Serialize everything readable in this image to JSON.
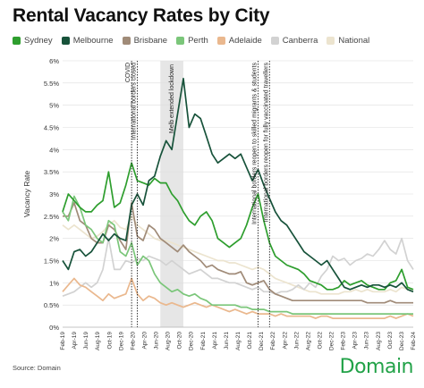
{
  "title": "Rental Vacancy Rates by City",
  "source": "Source: Domain",
  "brand": "Domain",
  "chart_data": {
    "type": "line",
    "xlabel": "",
    "ylabel": "Vacancy Rate",
    "ylim": [
      0,
      6
    ],
    "y_ticks": [
      "0%",
      "0.5%",
      "1%",
      "1.5%",
      "2%",
      "2.5%",
      "3%",
      "3.5%",
      "4%",
      "4.5%",
      "5%",
      "5.5%",
      "6%"
    ],
    "y_tick_values": [
      0,
      0.5,
      1,
      1.5,
      2,
      2.5,
      3,
      3.5,
      4,
      4.5,
      5,
      5.5,
      6
    ],
    "x_ticks": [
      "Feb-19",
      "Apr-19",
      "Jun-19",
      "Aug-19",
      "Oct-19",
      "Dec-19",
      "Feb-20",
      "Apr-20",
      "Jun-20",
      "Aug-20",
      "Oct-20",
      "Dec-20",
      "Feb-21",
      "Apr-21",
      "Jun-21",
      "Aug-21",
      "Oct-21",
      "Dec-21",
      "Feb-22",
      "Apr-22",
      "Jun-22",
      "Aug-22",
      "Oct-22",
      "Dec-22",
      "Feb-23",
      "Apr-23",
      "Jun-23",
      "Aug-23",
      "Oct-23",
      "Dec-23",
      "Feb-24"
    ],
    "grid": true,
    "legend_position": "top",
    "series": [
      {
        "name": "Sydney",
        "color": "#2e9e2e",
        "values": [
          2.6,
          3.0,
          2.85,
          2.7,
          2.6,
          2.6,
          2.75,
          2.85,
          3.5,
          2.7,
          2.8,
          3.2,
          3.7,
          3.3,
          3.25,
          3.2,
          3.35,
          3.25,
          3.25,
          3.0,
          2.85,
          2.6,
          2.4,
          2.3,
          2.5,
          2.6,
          2.4,
          2.0,
          1.9,
          1.8,
          1.9,
          2.0,
          2.3,
          2.7,
          3.0,
          2.4,
          1.9,
          1.6,
          1.5,
          1.4,
          1.35,
          1.3,
          1.2,
          1.05,
          1.0,
          0.95,
          0.85,
          0.85,
          0.9,
          1.05,
          0.95,
          1.0,
          1.05,
          0.95,
          0.9,
          0.85,
          0.85,
          1.0,
          1.05,
          1.3,
          0.9,
          0.85
        ]
      },
      {
        "name": "Melbourne",
        "color": "#17523a",
        "values": [
          1.5,
          1.3,
          1.7,
          1.75,
          1.6,
          1.7,
          1.9,
          2.1,
          1.95,
          2.1,
          2.0,
          1.95,
          2.75,
          3.0,
          2.75,
          3.3,
          3.4,
          3.85,
          4.2,
          4.0,
          4.8,
          5.6,
          4.5,
          4.8,
          4.7,
          4.3,
          3.9,
          3.7,
          3.8,
          3.9,
          3.8,
          3.9,
          3.6,
          3.3,
          3.55,
          3.2,
          2.9,
          2.6,
          2.4,
          2.3,
          2.1,
          1.9,
          1.7,
          1.6,
          1.5,
          1.4,
          1.5,
          1.3,
          1.1,
          0.9,
          0.85,
          0.9,
          0.95,
          0.9,
          0.95,
          0.95,
          0.9,
          0.95,
          0.9,
          1.0,
          0.85,
          0.8
        ]
      },
      {
        "name": "Brisbane",
        "color": "#a08b78",
        "values": [
          2.5,
          2.5,
          2.8,
          2.4,
          2.3,
          2.0,
          1.9,
          1.9,
          2.3,
          2.2,
          1.95,
          1.75,
          2.8,
          2.05,
          1.95,
          2.3,
          2.2,
          2.0,
          1.9,
          1.8,
          1.7,
          1.85,
          1.7,
          1.6,
          1.5,
          1.35,
          1.4,
          1.3,
          1.25,
          1.2,
          1.2,
          1.25,
          1.0,
          0.95,
          1.0,
          1.05,
          0.85,
          0.75,
          0.7,
          0.65,
          0.6,
          0.6,
          0.6,
          0.6,
          0.6,
          0.6,
          0.6,
          0.6,
          0.6,
          0.6,
          0.6,
          0.6,
          0.6,
          0.55,
          0.55,
          0.55,
          0.55,
          0.6,
          0.55,
          0.55,
          0.55,
          0.55
        ]
      },
      {
        "name": "Perth",
        "color": "#7bc67a",
        "values": [
          2.6,
          2.4,
          2.95,
          2.7,
          2.3,
          2.2,
          2.0,
          1.9,
          2.4,
          2.3,
          1.7,
          1.6,
          1.9,
          1.4,
          1.6,
          1.5,
          1.2,
          1.0,
          0.9,
          0.8,
          0.85,
          0.75,
          0.7,
          0.75,
          0.65,
          0.6,
          0.5,
          0.5,
          0.5,
          0.5,
          0.5,
          0.45,
          0.45,
          0.4,
          0.4,
          0.4,
          0.35,
          0.35,
          0.35,
          0.35,
          0.3,
          0.3,
          0.3,
          0.3,
          0.3,
          0.3,
          0.3,
          0.3,
          0.3,
          0.3,
          0.3,
          0.3,
          0.3,
          0.3,
          0.3,
          0.3,
          0.3,
          0.3,
          0.3,
          0.3,
          0.3,
          0.3
        ]
      },
      {
        "name": "Adelaide",
        "color": "#eab88e",
        "values": [
          0.8,
          0.95,
          1.1,
          0.95,
          0.9,
          0.8,
          0.7,
          0.6,
          0.75,
          0.65,
          0.7,
          0.75,
          1.1,
          0.75,
          0.6,
          0.7,
          0.65,
          0.55,
          0.5,
          0.55,
          0.5,
          0.45,
          0.5,
          0.55,
          0.5,
          0.45,
          0.5,
          0.45,
          0.4,
          0.35,
          0.4,
          0.35,
          0.3,
          0.35,
          0.3,
          0.3,
          0.3,
          0.25,
          0.3,
          0.25,
          0.25,
          0.25,
          0.25,
          0.25,
          0.2,
          0.25,
          0.25,
          0.2,
          0.2,
          0.2,
          0.2,
          0.2,
          0.2,
          0.2,
          0.2,
          0.2,
          0.2,
          0.25,
          0.2,
          0.25,
          0.3,
          0.25
        ]
      },
      {
        "name": "Canberra",
        "color": "#d2d2d2",
        "values": [
          0.7,
          0.75,
          0.8,
          0.9,
          1.0,
          0.9,
          1.0,
          1.3,
          2.0,
          1.3,
          1.3,
          1.5,
          1.45,
          1.55,
          1.5,
          1.6,
          1.55,
          1.5,
          1.4,
          1.5,
          1.4,
          1.3,
          1.2,
          1.25,
          1.3,
          1.2,
          1.1,
          1.1,
          1.05,
          1.0,
          1.0,
          0.95,
          0.9,
          0.85,
          0.9,
          0.8,
          0.8,
          0.75,
          0.8,
          0.8,
          0.85,
          0.95,
          0.85,
          1.0,
          0.9,
          1.15,
          1.3,
          1.6,
          1.5,
          1.55,
          1.4,
          1.5,
          1.55,
          1.65,
          1.6,
          1.75,
          1.95,
          1.75,
          1.65,
          2.0,
          1.5,
          1.3
        ]
      },
      {
        "name": "National",
        "color": "#ece4cf",
        "values": [
          2.3,
          2.2,
          2.3,
          2.2,
          2.1,
          2.0,
          2.05,
          2.15,
          2.3,
          2.4,
          2.25,
          2.2,
          2.5,
          2.3,
          2.2,
          2.1,
          2.0,
          1.95,
          1.95,
          1.9,
          1.85,
          1.8,
          1.75,
          1.7,
          1.65,
          1.6,
          1.55,
          1.5,
          1.5,
          1.45,
          1.45,
          1.4,
          1.35,
          1.3,
          1.35,
          1.3,
          1.2,
          1.1,
          1.05,
          1.0,
          0.95,
          0.9,
          0.85,
          0.8,
          0.8,
          0.75,
          0.75,
          0.75,
          0.75,
          0.8,
          0.8,
          0.85,
          0.8,
          0.85,
          0.8,
          0.8,
          0.8,
          0.85,
          0.8,
          0.9,
          0.85,
          0.85
        ]
      }
    ],
    "annotations": [
      {
        "label": "COVID",
        "x_index": 12,
        "style": "dotted"
      },
      {
        "label": "International borders closed",
        "x_index": 13,
        "style": "dotted"
      },
      {
        "label": "Melb extended lockdown",
        "x_range": [
          17,
          21
        ],
        "style": "shaded"
      },
      {
        "label": "International borders reopen to skilled migrants & students",
        "x_index": 34,
        "style": "dotted"
      },
      {
        "label": "International borders reopen for fully vaccinated travellers",
        "x_index": 36,
        "style": "dotted"
      }
    ]
  }
}
